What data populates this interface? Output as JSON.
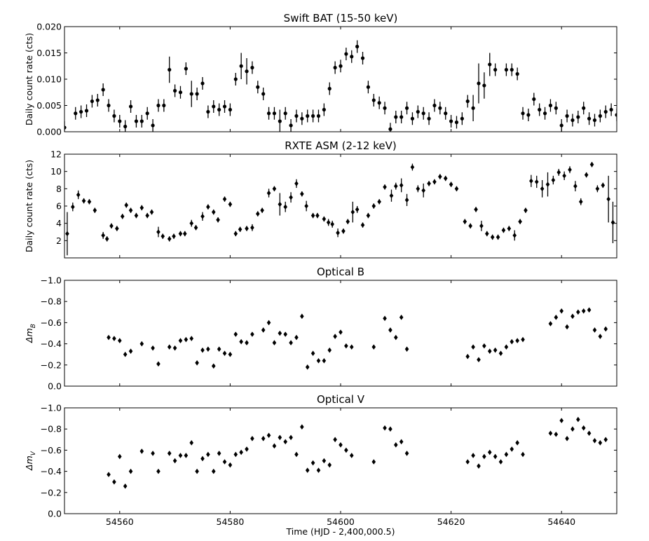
{
  "figure": {
    "xlabel": "Time (HJD - 2,400,000.5)",
    "xlim": [
      54550,
      54650
    ],
    "xticks": [
      54560,
      54580,
      54600,
      54620,
      54640
    ]
  },
  "chart_data": [
    {
      "type": "scatter",
      "title": "Swift BAT (15-50 keV)",
      "ylabel": "Daily count rate (cts)",
      "ylim": [
        0,
        0.02
      ],
      "inverted": false,
      "yticks": [
        0,
        0.005,
        0.01,
        0.015,
        0.02
      ],
      "ytick_labels": [
        "0.000",
        "0.005",
        "0.010",
        "0.015",
        "0.020"
      ],
      "marker": "dot",
      "series": [
        {
          "x": [
            54550,
            54552,
            54553,
            54554,
            54555,
            54556,
            54557,
            54558,
            54559,
            54560,
            54561,
            54562,
            54563,
            54564,
            54565,
            54566,
            54567,
            54568,
            54569,
            54570,
            54571,
            54572,
            54573,
            54574,
            54575,
            54576,
            54577,
            54578,
            54579,
            54580,
            54581,
            54582,
            54583,
            54584,
            54585,
            54586,
            54587,
            54588,
            54589,
            54590,
            54591,
            54592,
            54593,
            54594,
            54595,
            54596,
            54597,
            54598,
            54599,
            54600,
            54601,
            54602,
            54603,
            54604,
            54605,
            54606,
            54607,
            54608,
            54609,
            54610,
            54611,
            54612,
            54613,
            54614,
            54615,
            54616,
            54617,
            54618,
            54619,
            54620,
            54621,
            54622,
            54623,
            54624,
            54625,
            54626,
            54627,
            54628,
            54630,
            54631,
            54632,
            54633,
            54634,
            54635,
            54636,
            54637,
            54638,
            54639,
            54640,
            54641,
            54642,
            54643,
            54644,
            54645,
            54646,
            54647,
            54648,
            54649,
            54650
          ],
          "y": [
            0.0008,
            0.0035,
            0.0038,
            0.004,
            0.0058,
            0.006,
            0.008,
            0.005,
            0.003,
            0.002,
            0.001,
            0.0048,
            0.002,
            0.002,
            0.0035,
            0.0012,
            0.005,
            0.005,
            0.0118,
            0.0078,
            0.0075,
            0.012,
            0.0072,
            0.0072,
            0.0092,
            0.0038,
            0.0048,
            0.0042,
            0.0048,
            0.0042,
            0.01,
            0.0125,
            0.0115,
            0.0122,
            0.0085,
            0.0072,
            0.0035,
            0.0035,
            0.002,
            0.0035,
            0.0012,
            0.003,
            0.0025,
            0.003,
            0.003,
            0.003,
            0.0042,
            0.0082,
            0.0122,
            0.0125,
            0.0148,
            0.0143,
            0.0162,
            0.014,
            0.0085,
            0.006,
            0.0055,
            0.0045,
            0.0005,
            0.0028,
            0.0028,
            0.0045,
            0.0025,
            0.0038,
            0.0035,
            0.0025,
            0.005,
            0.0045,
            0.0035,
            0.002,
            0.0018,
            0.0025,
            0.0058,
            0.0045,
            0.0092,
            0.0088,
            0.0128,
            0.0118,
            0.0118,
            0.0118,
            0.011,
            0.0035,
            0.0032,
            0.0062,
            0.0042,
            0.0035,
            0.005,
            0.0045,
            0.0012,
            0.003,
            0.0022,
            0.0028,
            0.0045,
            0.0025,
            0.0022,
            0.003,
            0.0038,
            0.0042,
            0.0032
          ],
          "err": [
            0.0012,
            0.0012,
            0.0012,
            0.0012,
            0.0012,
            0.0012,
            0.0012,
            0.0012,
            0.0012,
            0.0012,
            0.0012,
            0.0012,
            0.0012,
            0.0012,
            0.0012,
            0.0012,
            0.0012,
            0.0012,
            0.0025,
            0.0012,
            0.0012,
            0.0012,
            0.0025,
            0.0012,
            0.0012,
            0.0012,
            0.0012,
            0.0012,
            0.0012,
            0.0012,
            0.0012,
            0.0025,
            0.0025,
            0.0012,
            0.0012,
            0.0012,
            0.0012,
            0.0012,
            0.0022,
            0.0012,
            0.0012,
            0.0012,
            0.0012,
            0.0012,
            0.0012,
            0.0012,
            0.0012,
            0.0012,
            0.0012,
            0.0012,
            0.0012,
            0.0012,
            0.0012,
            0.0012,
            0.0012,
            0.0012,
            0.0012,
            0.0012,
            0.0012,
            0.0012,
            0.0012,
            0.0012,
            0.0012,
            0.0012,
            0.0012,
            0.0012,
            0.0012,
            0.0012,
            0.0012,
            0.0012,
            0.0012,
            0.0012,
            0.0012,
            0.0025,
            0.0038,
            0.0025,
            0.0022,
            0.0012,
            0.0012,
            0.0012,
            0.0012,
            0.0012,
            0.0012,
            0.0012,
            0.0012,
            0.0012,
            0.0012,
            0.0012,
            0.0012,
            0.0012,
            0.0012,
            0.0012,
            0.0012,
            0.0012,
            0.0012,
            0.0012,
            0.0012,
            0.0012,
            0.0012
          ]
        }
      ]
    },
    {
      "type": "scatter",
      "title": "RXTE ASM (2-12 keV)",
      "ylabel": "Daily count rate (cts)",
      "ylim": [
        0,
        12
      ],
      "inverted": false,
      "yticks": [
        2,
        4,
        6,
        8,
        10,
        12
      ],
      "ytick_labels": [
        "2",
        "4",
        "6",
        "8",
        "10",
        "12"
      ],
      "marker": "diamond",
      "series": [
        {
          "x": [
            54550.5,
            54551.5,
            54552.5,
            54553.5,
            54554.5,
            54555.5,
            54557,
            54557.7,
            54558.5,
            54559.5,
            54560.5,
            54561.2,
            54562,
            54563,
            54564,
            54565,
            54565.8,
            54567,
            54567.8,
            54569,
            54569.8,
            54571,
            54571.8,
            54573,
            54573.8,
            54575,
            54576,
            54577,
            54577.8,
            54579,
            54580,
            54581,
            54581.8,
            54583,
            54584,
            54585,
            54585.8,
            54587,
            54588,
            54589,
            54590,
            54591,
            54592,
            54593,
            54593.8,
            54595,
            54595.8,
            54597,
            54597.8,
            54598.5,
            54599.5,
            54600.5,
            54601.3,
            54602.2,
            54603,
            54604,
            54605,
            54606,
            54607,
            54608,
            54609.2,
            54610,
            54611,
            54612,
            54613,
            54614,
            54615,
            54616,
            54617,
            54618,
            54619,
            54620,
            54621,
            54622.5,
            54623.5,
            54624.5,
            54625.5,
            54626.5,
            54627.5,
            54628.5,
            54629.5,
            54630.5,
            54631.5,
            54632.5,
            54633.5,
            54634.5,
            54635.5,
            54636.5,
            54637.5,
            54638.5,
            54639.5,
            54640.5,
            54641.5,
            54642.5,
            54643.5,
            54644.5,
            54645.5,
            54646.5,
            54647.5,
            54648.5,
            54649.3
          ],
          "y": [
            2.8,
            5.9,
            7.3,
            6.6,
            6.5,
            5.5,
            2.6,
            2.2,
            3.7,
            3.4,
            4.8,
            6.1,
            5.5,
            4.9,
            5.8,
            4.9,
            5.3,
            3.0,
            2.5,
            2.2,
            2.5,
            2.8,
            2.8,
            4.0,
            3.5,
            4.8,
            5.9,
            5.3,
            4.4,
            6.8,
            6.2,
            2.8,
            3.3,
            3.4,
            3.5,
            5.1,
            5.5,
            7.5,
            8.0,
            6.2,
            5.9,
            7.0,
            8.6,
            7.4,
            6.0,
            4.9,
            4.9,
            4.5,
            4.1,
            3.9,
            2.9,
            3.1,
            4.2,
            5.3,
            5.6,
            3.8,
            4.9,
            6.0,
            6.5,
            8.2,
            7.2,
            8.3,
            8.4,
            6.7,
            10.5,
            8.0,
            7.8,
            8.6,
            8.8,
            9.4,
            9.2,
            8.5,
            8.0,
            4.2,
            3.7,
            5.6,
            3.7,
            2.8,
            2.4,
            2.4,
            3.2,
            3.4,
            2.6,
            4.2,
            5.5,
            8.9,
            8.8,
            8.0,
            8.5,
            9.0,
            9.9,
            9.5,
            10.2,
            8.3,
            6.5,
            9.6,
            10.8,
            8.0,
            8.4,
            6.8,
            4.1
          ],
          "err": [
            2.5,
            0.5,
            0.5,
            0.3,
            0.3,
            0.3,
            0.4,
            0.3,
            0.3,
            0.3,
            0.3,
            0.3,
            0.3,
            0.3,
            0.3,
            0.3,
            0.3,
            0.6,
            0.3,
            0.3,
            0.3,
            0.3,
            0.3,
            0.4,
            0.3,
            0.5,
            0.3,
            0.3,
            0.3,
            0.3,
            0.3,
            0.3,
            0.3,
            0.3,
            0.4,
            0.3,
            0.3,
            0.5,
            0.3,
            1.3,
            0.6,
            0.6,
            0.5,
            0.3,
            0.6,
            0.3,
            0.3,
            0.3,
            0.4,
            0.4,
            0.5,
            0.3,
            0.3,
            1.2,
            0.4,
            0.3,
            0.3,
            0.3,
            0.3,
            0.3,
            0.7,
            0.4,
            0.8,
            0.7,
            0.4,
            0.4,
            0.8,
            0.3,
            0.3,
            0.3,
            0.3,
            0.3,
            0.3,
            0.3,
            0.3,
            0.3,
            0.6,
            0.3,
            0.3,
            0.3,
            0.3,
            0.3,
            0.6,
            0.3,
            0.3,
            0.7,
            0.7,
            1.0,
            1.4,
            0.5,
            0.4,
            0.5,
            0.4,
            0.6,
            0.4,
            0.3,
            0.3,
            0.4,
            0.3,
            2.7,
            2.4
          ]
        }
      ]
    },
    {
      "type": "scatter",
      "title": "Optical B",
      "ylabel": "Δm_B",
      "ylim": [
        0,
        -1.0
      ],
      "inverted": true,
      "yticks": [
        0,
        -0.2,
        -0.4,
        -0.6,
        -0.8,
        -1.0
      ],
      "ytick_labels": [
        "0.0",
        "−0.2",
        "−0.4",
        "−0.6",
        "−0.8",
        "−1.0"
      ],
      "marker": "diamond",
      "series": [
        {
          "x": [
            54558,
            54559,
            54560,
            54561,
            54562,
            54564,
            54566,
            54567,
            54569,
            54570,
            54571,
            54572,
            54573,
            54574,
            54575,
            54576,
            54577,
            54578,
            54579,
            54580,
            54581,
            54582,
            54583,
            54584,
            54586,
            54587,
            54588,
            54589,
            54590,
            54591,
            54592,
            54593,
            54594,
            54595,
            54596,
            54597,
            54598,
            54599,
            54600,
            54601,
            54602,
            54606,
            54608,
            54609,
            54610,
            54611,
            54612,
            54623,
            54624,
            54625,
            54626,
            54627,
            54628,
            54629,
            54630,
            54631,
            54632,
            54633,
            54638,
            54639,
            54640,
            54641,
            54642,
            54643,
            54644,
            54645,
            54646,
            54647,
            54648
          ],
          "y": [
            -0.46,
            -0.45,
            -0.43,
            -0.3,
            -0.33,
            -0.4,
            -0.36,
            -0.21,
            -0.37,
            -0.36,
            -0.43,
            -0.44,
            -0.45,
            -0.22,
            -0.34,
            -0.35,
            -0.19,
            -0.35,
            -0.31,
            -0.3,
            -0.49,
            -0.42,
            -0.41,
            -0.49,
            -0.53,
            -0.6,
            -0.41,
            -0.5,
            -0.49,
            -0.41,
            -0.46,
            -0.66,
            -0.18,
            -0.31,
            -0.24,
            -0.24,
            -0.34,
            -0.47,
            -0.51,
            -0.38,
            -0.37,
            -0.37,
            -0.64,
            -0.53,
            -0.46,
            -0.65,
            -0.35,
            -0.28,
            -0.37,
            -0.25,
            -0.38,
            -0.33,
            -0.34,
            -0.31,
            -0.37,
            -0.42,
            -0.43,
            -0.44,
            -0.59,
            -0.65,
            -0.71,
            -0.56,
            -0.66,
            -0.7,
            -0.71,
            -0.72,
            -0.53,
            -0.47,
            -0.54
          ]
        }
      ]
    },
    {
      "type": "scatter",
      "title": "Optical V",
      "ylabel": "Δm_V",
      "ylim": [
        0,
        -1.0
      ],
      "inverted": true,
      "yticks": [
        0,
        -0.2,
        -0.4,
        -0.6,
        -0.8,
        -1.0
      ],
      "ytick_labels": [
        "0.0",
        "−0.2",
        "−0.4",
        "−0.6",
        "−0.8",
        "−1.0"
      ],
      "marker": "diamond",
      "series": [
        {
          "x": [
            54558,
            54559,
            54560,
            54561,
            54562,
            54564,
            54566,
            54567,
            54569,
            54570,
            54571,
            54572,
            54573,
            54574,
            54575,
            54576,
            54577,
            54578,
            54579,
            54580,
            54581,
            54582,
            54583,
            54584,
            54586,
            54587,
            54588,
            54589,
            54590,
            54591,
            54592,
            54593,
            54594,
            54595,
            54596,
            54597,
            54598,
            54599,
            54600,
            54601,
            54602,
            54606,
            54608,
            54609,
            54610,
            54611,
            54612,
            54623,
            54624,
            54625,
            54626,
            54627,
            54628,
            54629,
            54630,
            54631,
            54632,
            54633,
            54638,
            54639,
            54640,
            54641,
            54642,
            54643,
            54644,
            54645,
            54646,
            54647,
            54648
          ],
          "y": [
            -0.37,
            -0.3,
            -0.54,
            -0.26,
            -0.4,
            -0.59,
            -0.57,
            -0.4,
            -0.57,
            -0.5,
            -0.55,
            -0.55,
            -0.67,
            -0.4,
            -0.52,
            -0.56,
            -0.4,
            -0.57,
            -0.49,
            -0.46,
            -0.56,
            -0.58,
            -0.61,
            -0.71,
            -0.71,
            -0.74,
            -0.64,
            -0.72,
            -0.68,
            -0.72,
            -0.56,
            -0.82,
            -0.41,
            -0.48,
            -0.41,
            -0.5,
            -0.46,
            -0.7,
            -0.65,
            -0.6,
            -0.55,
            -0.49,
            -0.81,
            -0.8,
            -0.65,
            -0.68,
            -0.57,
            -0.49,
            -0.55,
            -0.45,
            -0.54,
            -0.58,
            -0.54,
            -0.49,
            -0.56,
            -0.61,
            -0.67,
            -0.56,
            -0.76,
            -0.75,
            -0.88,
            -0.71,
            -0.8,
            -0.89,
            -0.81,
            -0.76,
            -0.69,
            -0.67,
            -0.7
          ]
        }
      ]
    }
  ]
}
